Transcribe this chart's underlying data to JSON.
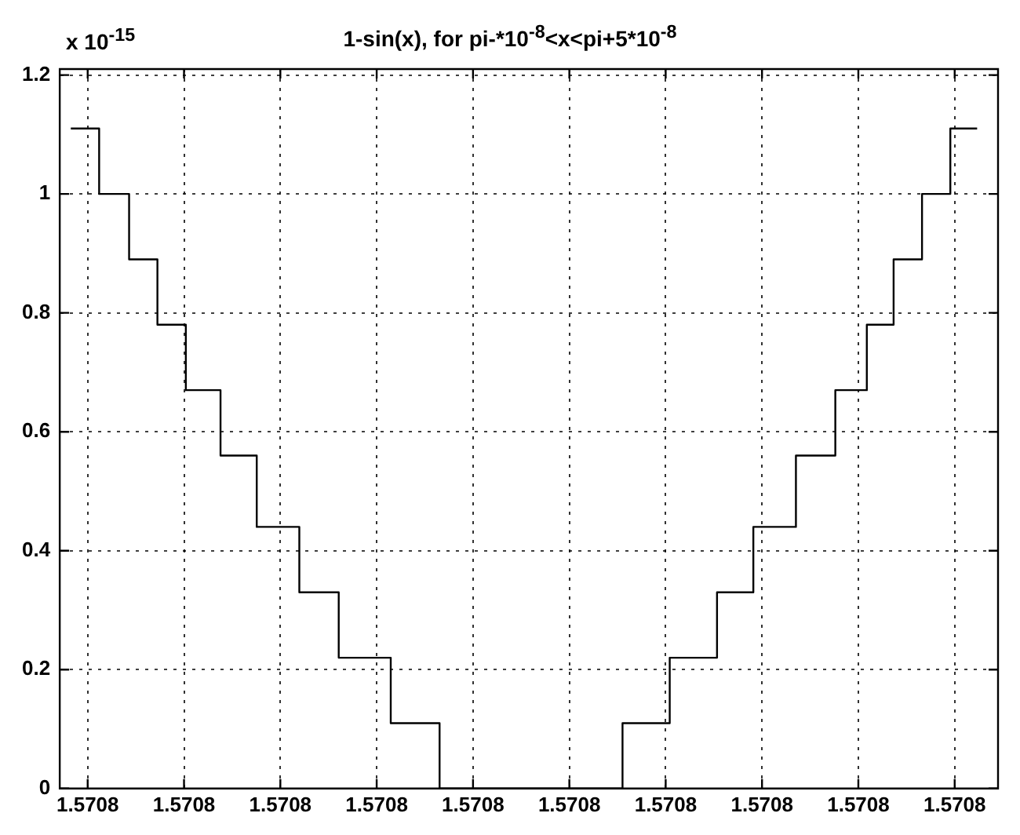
{
  "chart_data": {
    "type": "step",
    "title": "1-sin(x), for pi-*10$^{-8}$<x<pi+5*10$^{-8}$",
    "annotations": [
      "x 10$^{-15}$"
    ],
    "x": [
      1.57079627825,
      1.57079628119,
      1.5707962843,
      1.57079628724,
      1.57079629019,
      1.57079629379,
      1.57079629755,
      1.57079630197,
      1.57079630606,
      1.57079631146,
      1.57079631653,
      1.57079633552,
      1.57079634042,
      1.57079634533,
      1.5707963491,
      1.57079635352,
      1.57079635761,
      1.57079636088,
      1.57079636366,
      1.57079636661,
      1.57079636955,
      1.57079637233
    ],
    "series": [
      {
        "color": "#000000",
        "values": [
          1.11,
          1.0,
          0.89,
          0.78,
          0.67,
          0.56,
          0.44,
          0.33,
          0.22,
          0.11,
          0,
          0.11,
          0.22,
          0.33,
          0.44,
          0.56,
          0.67,
          0.78,
          0.89,
          1.0,
          1.11,
          1.11
        ]
      }
    ],
    "xlim": [
      1.5707962771,
      1.5707963745
    ],
    "xticks": [
      {
        "value": 1.57079628,
        "label": "1.5708"
      },
      {
        "value": 1.57079629,
        "label": "1.5708"
      },
      {
        "value": 1.5707963,
        "label": "1.5708"
      },
      {
        "value": 1.57079631,
        "label": "1.5708"
      },
      {
        "value": 1.57079632,
        "label": "1.5708"
      },
      {
        "value": 1.57079633,
        "label": "1.5708"
      },
      {
        "value": 1.57079634,
        "label": "1.5708"
      },
      {
        "value": 1.57079635,
        "label": "1.5708"
      },
      {
        "value": 1.57079636,
        "label": "1.5708"
      },
      {
        "value": 1.57079637,
        "label": "1.5708"
      }
    ],
    "ylim": [
      0,
      1.21
    ],
    "yticks": [
      0,
      0.2,
      0.4,
      0.6,
      0.8,
      1,
      1.2
    ],
    "grid": true,
    "line_style": "solid",
    "marker": "none"
  }
}
